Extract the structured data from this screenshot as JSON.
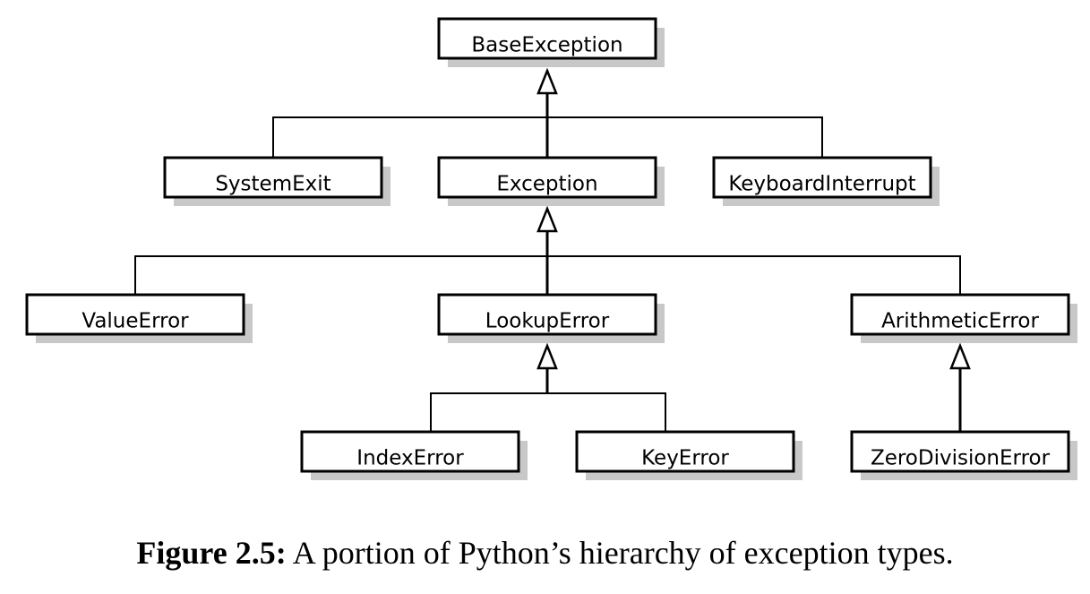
{
  "diagram": {
    "nodes": [
      {
        "id": "base_exception",
        "label": "BaseException",
        "parent": null
      },
      {
        "id": "system_exit",
        "label": "SystemExit",
        "parent": "base_exception"
      },
      {
        "id": "exception",
        "label": "Exception",
        "parent": "base_exception"
      },
      {
        "id": "keyboard_interrupt",
        "label": "KeyboardInterrupt",
        "parent": "base_exception"
      },
      {
        "id": "value_error",
        "label": "ValueError",
        "parent": "exception"
      },
      {
        "id": "lookup_error",
        "label": "LookupError",
        "parent": "exception"
      },
      {
        "id": "arithmetic_error",
        "label": "ArithmeticError",
        "parent": "exception"
      },
      {
        "id": "index_error",
        "label": "IndexError",
        "parent": "lookup_error"
      },
      {
        "id": "key_error",
        "label": "KeyError",
        "parent": "lookup_error"
      },
      {
        "id": "zero_division_error",
        "label": "ZeroDivisionError",
        "parent": "arithmetic_error"
      }
    ]
  },
  "caption": {
    "label": "Figure 2.5:",
    "text": "A portion of Python’s hierarchy of exception types."
  },
  "colors": {
    "box_fill": "#ffffff",
    "box_border": "#000000",
    "shadow": "#c8c8c8",
    "line": "#000000"
  }
}
